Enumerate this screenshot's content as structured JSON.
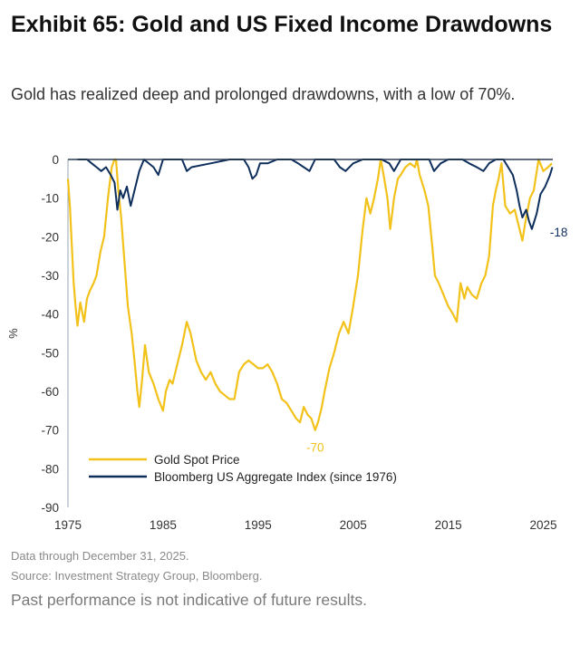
{
  "header": {
    "title": "Exhibit 65: Gold and US Fixed Income Drawdowns",
    "subtitle": "Gold has realized deep and prolonged drawdowns, with a low of 70%."
  },
  "footer": {
    "data_note": "Data through December 31, 2025.",
    "source": "Source: Investment Strategy Group, Bloomberg.",
    "disclaimer": "Past performance is not indicative of future results."
  },
  "colors": {
    "gold": "#F2C21A",
    "bond": "#0E2E5C",
    "axis": "#333333"
  },
  "chart_data": {
    "type": "line",
    "ylabel": "%",
    "xlabel": "",
    "xlim": [
      1975,
      2026
    ],
    "ylim": [
      -90,
      0
    ],
    "xticks": [
      1975,
      1985,
      1995,
      2005,
      2015,
      2025
    ],
    "yticks": [
      0,
      -10,
      -20,
      -30,
      -40,
      -50,
      -60,
      -70,
      -80,
      -90
    ],
    "grid": false,
    "legend": "bottom-left",
    "series": [
      {
        "name": "Gold Spot Price",
        "color": "#F2C21A",
        "x": [
          1975.0,
          1975.2,
          1975.4,
          1975.6,
          1975.8,
          1976.0,
          1976.3,
          1976.7,
          1977.0,
          1977.3,
          1977.7,
          1978.0,
          1978.4,
          1978.8,
          1979.2,
          1979.6,
          1979.9,
          1980.05,
          1980.3,
          1980.6,
          1980.9,
          1981.3,
          1981.7,
          1982.0,
          1982.3,
          1982.5,
          1982.8,
          1983.1,
          1983.5,
          1984.0,
          1984.5,
          1985.0,
          1985.3,
          1985.7,
          1986.0,
          1986.5,
          1987.0,
          1987.5,
          1987.9,
          1988.5,
          1989.0,
          1989.5,
          1990.0,
          1990.5,
          1991.0,
          1991.5,
          1992.0,
          1992.5,
          1993.0,
          1993.5,
          1994.0,
          1994.5,
          1995.0,
          1995.5,
          1996.0,
          1996.5,
          1997.0,
          1997.5,
          1998.0,
          1998.5,
          1999.0,
          1999.4,
          1999.8,
          2000.2,
          2000.6,
          2001.0,
          2001.3,
          2001.7,
          2002.0,
          2002.5,
          2003.0,
          2003.5,
          2004.0,
          2004.5,
          2005.0,
          2005.5,
          2006.0,
          2006.4,
          2006.8,
          2007.2,
          2007.6,
          2007.9,
          2008.2,
          2008.6,
          2008.9,
          2009.3,
          2009.7,
          2010.0,
          2010.5,
          2011.0,
          2011.5,
          2011.7,
          2012.0,
          2012.5,
          2012.9,
          2013.3,
          2013.6,
          2014.0,
          2014.5,
          2015.0,
          2015.5,
          2015.9,
          2016.3,
          2016.7,
          2017.0,
          2017.5,
          2018.0,
          2018.5,
          2018.9,
          2019.3,
          2019.7,
          2020.0,
          2020.3,
          2020.6,
          2021.0,
          2021.5,
          2022.0,
          2022.5,
          2022.8,
          2023.2,
          2023.6,
          2024.0,
          2024.5,
          2025.0,
          2025.5,
          2025.9
        ],
        "y": [
          -5,
          -12,
          -22,
          -32,
          -38,
          -43,
          -37,
          -42,
          -36,
          -34,
          -32,
          -30,
          -24,
          -20,
          -10,
          -2,
          0,
          0,
          -8,
          -15,
          -25,
          -38,
          -45,
          -52,
          -60,
          -64,
          -57,
          -48,
          -55,
          -58,
          -62,
          -65,
          -60,
          -57,
          -58,
          -53,
          -48,
          -42,
          -45,
          -52,
          -55,
          -57,
          -55,
          -58,
          -60,
          -61,
          -62,
          -62,
          -55,
          -53,
          -52,
          -53,
          -54,
          -54,
          -53,
          -55,
          -58,
          -62,
          -63,
          -65,
          -67,
          -68,
          -64,
          -66,
          -67,
          -70,
          -68,
          -64,
          -60,
          -54,
          -50,
          -45,
          -42,
          -45,
          -38,
          -30,
          -18,
          -10,
          -14,
          -10,
          -5,
          0,
          -4,
          -10,
          -18,
          -10,
          -5,
          -4,
          -2,
          -1,
          -2,
          0,
          -4,
          -8,
          -12,
          -22,
          -30,
          -32,
          -35,
          -38,
          -40,
          -42,
          -32,
          -36,
          -33,
          -35,
          -36,
          -32,
          -30,
          -25,
          -12,
          -8,
          -5,
          -1,
          -12,
          -14,
          -13,
          -18,
          -21,
          -15,
          -10,
          -8,
          0,
          -3,
          -2,
          -1
        ]
      },
      {
        "name": "Bloomberg US Aggregate Index (since 1976)",
        "color": "#0E2E5C",
        "x": [
          1976.0,
          1977.0,
          1977.5,
          1978.0,
          1978.5,
          1979.0,
          1979.5,
          1979.9,
          1980.2,
          1980.5,
          1980.8,
          1981.2,
          1981.6,
          1981.9,
          1982.5,
          1983.0,
          1984.0,
          1984.5,
          1985.0,
          1986.0,
          1987.0,
          1987.5,
          1988.0,
          1990.0,
          1992.0,
          1993.5,
          1994.0,
          1994.4,
          1994.8,
          1995.2,
          1996.0,
          1997.0,
          1998.5,
          1999.2,
          1999.8,
          2000.4,
          2001.0,
          2003.0,
          2003.6,
          2004.2,
          2005.0,
          2006.0,
          2008.0,
          2008.8,
          2009.3,
          2010.0,
          2013.0,
          2013.5,
          2014.2,
          2015.0,
          2016.5,
          2017.2,
          2018.0,
          2018.7,
          2019.3,
          2020.0,
          2020.8,
          2021.3,
          2021.8,
          2022.2,
          2022.5,
          2022.8,
          2023.2,
          2023.5,
          2023.8,
          2024.3,
          2024.7,
          2025.2,
          2025.7,
          2025.95
        ],
        "y": [
          0,
          0,
          -1,
          -2,
          -3,
          -2,
          -4,
          -6,
          -13,
          -8,
          -10,
          -7,
          -12,
          -9,
          -3,
          0,
          -2,
          -4,
          0,
          0,
          0,
          -3,
          -2,
          -1,
          0,
          0,
          -2,
          -5,
          -4,
          -1,
          -1,
          0,
          0,
          -1,
          -2,
          -3,
          0,
          0,
          -2,
          -3,
          -1,
          0,
          0,
          -1,
          -3,
          0,
          0,
          -3,
          -1,
          0,
          0,
          -1,
          -2,
          -3,
          -1,
          0,
          0,
          -2,
          -4,
          -8,
          -12,
          -15,
          -13,
          -16,
          -18,
          -14,
          -9,
          -7,
          -4,
          -2
        ]
      }
    ],
    "annotations": [
      {
        "text": "-70",
        "series": 0,
        "x": 2001.0,
        "y": -70
      },
      {
        "text": "-18",
        "series": 1,
        "x": 2023.8,
        "y": -18
      }
    ]
  }
}
